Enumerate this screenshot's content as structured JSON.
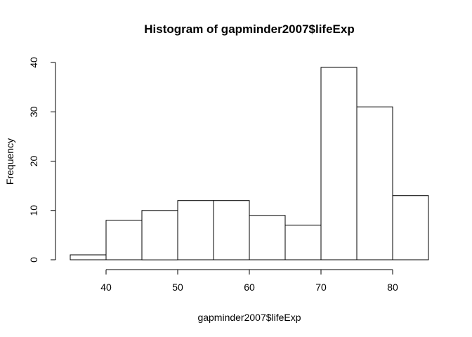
{
  "chart_data": {
    "type": "bar",
    "title": "Histogram of gapminder2007$lifeExp",
    "xlabel": "gapminder2007$lifeExp",
    "ylabel": "Frequency",
    "bins": [
      {
        "start": 35,
        "end": 40,
        "count": 1
      },
      {
        "start": 40,
        "end": 45,
        "count": 8
      },
      {
        "start": 45,
        "end": 50,
        "count": 10
      },
      {
        "start": 50,
        "end": 55,
        "count": 12
      },
      {
        "start": 55,
        "end": 60,
        "count": 12
      },
      {
        "start": 60,
        "end": 65,
        "count": 9
      },
      {
        "start": 65,
        "end": 70,
        "count": 7
      },
      {
        "start": 70,
        "end": 75,
        "count": 39
      },
      {
        "start": 75,
        "end": 80,
        "count": 31
      },
      {
        "start": 80,
        "end": 85,
        "count": 13
      }
    ],
    "xlim": [
      35,
      85
    ],
    "ylim": [
      0,
      40
    ],
    "xticks": [
      40,
      50,
      60,
      70,
      80
    ],
    "yticks": [
      0,
      10,
      20,
      30,
      40
    ],
    "grid": false,
    "legend": "none"
  }
}
